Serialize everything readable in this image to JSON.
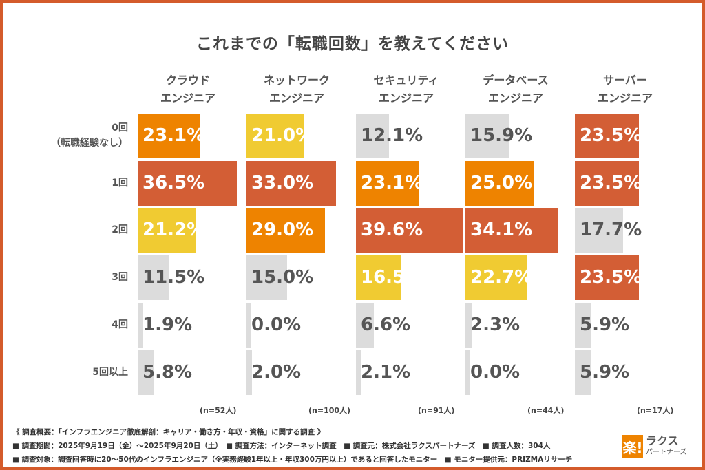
{
  "chart_data": {
    "type": "bar",
    "orientation": "horizontal",
    "title": "これまでの「転職回数」を教えてください",
    "categories": [
      "0回\n（転職経験なし）",
      "1回",
      "2回",
      "3回",
      "4回",
      "5回以上"
    ],
    "value_format": "percent",
    "xlim": [
      0,
      40
    ],
    "grid": false,
    "series": [
      {
        "name": "クラウド\nエンジニア",
        "n_label": "(n=52人)",
        "values": [
          23.1,
          36.5,
          21.2,
          11.5,
          1.9,
          5.8
        ],
        "colors": [
          "#EE8300",
          "#D35E35",
          "#F0CB32",
          "#DCDCDC",
          "#DCDCDC",
          "#DCDCDC"
        ]
      },
      {
        "name": "ネットワーク\nエンジニア",
        "n_label": "(n=100人)",
        "values": [
          21.0,
          33.0,
          29.0,
          15.0,
          0.0,
          2.0
        ],
        "colors": [
          "#F0CB32",
          "#D35E35",
          "#EE8300",
          "#DCDCDC",
          "#DCDCDC",
          "#DCDCDC"
        ]
      },
      {
        "name": "セキュリティ\nエンジニア",
        "n_label": "(n=91人)",
        "values": [
          12.1,
          23.1,
          39.6,
          16.5,
          6.6,
          2.1
        ],
        "colors": [
          "#DCDCDC",
          "#EE8300",
          "#D35E35",
          "#F0CB32",
          "#DCDCDC",
          "#DCDCDC"
        ]
      },
      {
        "name": "データベース\nエンジニア",
        "n_label": "(n=44人)",
        "values": [
          15.9,
          25.0,
          34.1,
          22.7,
          2.3,
          0.0
        ],
        "colors": [
          "#DCDCDC",
          "#EE8300",
          "#D35E35",
          "#F0CB32",
          "#DCDCDC",
          "#DCDCDC"
        ]
      },
      {
        "name": "サーバー\nエンジニア",
        "n_label": "(n=17人)",
        "values": [
          23.5,
          23.5,
          17.7,
          23.5,
          5.9,
          5.9
        ],
        "colors": [
          "#D35E35",
          "#D35E35",
          "#DCDCDC",
          "#D35E35",
          "#DCDCDC",
          "#DCDCDC"
        ]
      }
    ]
  },
  "notes": [
    "《 調査概要：「インフラエンジニア徹底解剖：キャリア・働き方・年収・資格」に関する調査 》",
    "■ 調査期間：2025年9月19日（金）～2025年9月20日（土）　■ 調査方法：インターネット調査　■ 調査元：株式会社ラクスパートナーズ　■ 調査人数：304人",
    "■ 調査対象：調査回答時に20～50代のインフラエンジニア（※実務経験1年以上・年収300万円以上）であると回答したモニター　■ モニター提供元：PRIZMAリサーチ"
  ],
  "logo": {
    "mark": "楽!",
    "name": "ラクス",
    "sub": "パートナーズ"
  },
  "frame_color": "#D45B2B"
}
